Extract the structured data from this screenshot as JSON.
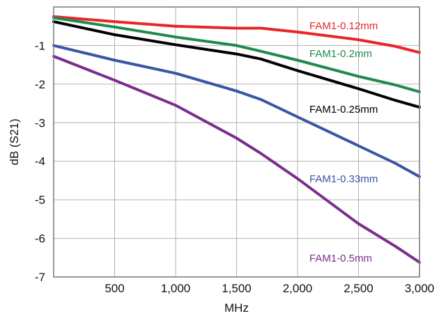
{
  "chart_data": {
    "type": "line",
    "title": "",
    "xlabel": "MHz",
    "ylabel": "dB (S21)",
    "xlim": [
      0,
      3000
    ],
    "ylim": [
      -7,
      0
    ],
    "grid": true,
    "x_ticks": [
      500,
      1000,
      1500,
      2000,
      2500,
      3000
    ],
    "x_tick_labels": [
      "500",
      "1,000",
      "1,500",
      "2,000",
      "2,500",
      "3,000"
    ],
    "y_ticks": [
      -1,
      -2,
      -3,
      -4,
      -5,
      -6,
      -7
    ],
    "y_tick_labels": [
      "-1",
      "-2",
      "-3",
      "-4",
      "-5",
      "-6",
      "-7"
    ],
    "series": [
      {
        "name": "FAM1-0.12mm",
        "color": "#e8262a",
        "x": [
          0,
          500,
          1000,
          1500,
          1700,
          2000,
          2500,
          2800,
          3000
        ],
        "y": [
          -0.25,
          -0.38,
          -0.5,
          -0.55,
          -0.55,
          -0.65,
          -0.85,
          -1.02,
          -1.18
        ]
      },
      {
        "name": "FAM1-0.2mm",
        "color": "#1f8a4c",
        "x": [
          0,
          500,
          1000,
          1500,
          1700,
          2000,
          2500,
          2800,
          3000
        ],
        "y": [
          -0.28,
          -0.52,
          -0.78,
          -1.0,
          -1.15,
          -1.38,
          -1.8,
          -2.02,
          -2.2
        ]
      },
      {
        "name": "FAM1-0.25mm",
        "color": "#000000",
        "x": [
          0,
          500,
          1000,
          1500,
          1700,
          2000,
          2500,
          2800,
          3000
        ],
        "y": [
          -0.38,
          -0.72,
          -0.98,
          -1.22,
          -1.35,
          -1.65,
          -2.12,
          -2.42,
          -2.6
        ]
      },
      {
        "name": "FAM1-0.33mm",
        "color": "#3a55a4",
        "x": [
          0,
          500,
          1000,
          1500,
          1700,
          2000,
          2500,
          2800,
          3000
        ],
        "y": [
          -1.0,
          -1.38,
          -1.72,
          -2.18,
          -2.4,
          -2.85,
          -3.6,
          -4.05,
          -4.4
        ]
      },
      {
        "name": "FAM1-0.5mm",
        "color": "#7b2d8e",
        "x": [
          0,
          500,
          1000,
          1500,
          1700,
          2000,
          2500,
          2800,
          3000
        ],
        "y": [
          -1.28,
          -1.9,
          -2.55,
          -3.4,
          -3.8,
          -4.45,
          -5.62,
          -6.2,
          -6.62
        ]
      }
    ]
  }
}
